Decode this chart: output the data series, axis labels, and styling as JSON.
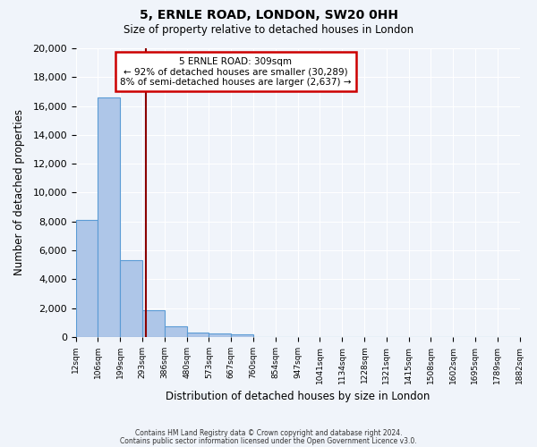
{
  "title": "5, ERNLE ROAD, LONDON, SW20 0HH",
  "subtitle": "Size of property relative to detached houses in London",
  "xlabel": "Distribution of detached houses by size in London",
  "ylabel": "Number of detached properties",
  "bar_values": [
    8100,
    16600,
    5300,
    1850,
    750,
    300,
    250,
    200,
    0,
    0,
    0,
    0,
    0,
    0,
    0,
    0,
    0,
    0,
    0,
    0
  ],
  "bin_labels": [
    "12sqm",
    "106sqm",
    "199sqm",
    "293sqm",
    "386sqm",
    "480sqm",
    "573sqm",
    "667sqm",
    "760sqm",
    "854sqm",
    "947sqm",
    "1041sqm",
    "1134sqm",
    "1228sqm",
    "1321sqm",
    "1415sqm",
    "1508sqm",
    "1602sqm",
    "1695sqm",
    "1789sqm",
    "1882sqm"
  ],
  "ylim": [
    0,
    20000
  ],
  "yticks": [
    0,
    2000,
    4000,
    6000,
    8000,
    10000,
    12000,
    14000,
    16000,
    18000,
    20000
  ],
  "bar_color": "#aec6e8",
  "bar_edge_color": "#5b9bd5",
  "vline_x": 3.17,
  "vline_color": "#8b0000",
  "annotation_title": "5 ERNLE ROAD: 309sqm",
  "annotation_line1": "← 92% of detached houses are smaller (30,289)",
  "annotation_line2": "8% of semi-detached houses are larger (2,637) →",
  "annotation_box_color": "#ffffff",
  "annotation_border_color": "#cc0000",
  "footer1": "Contains HM Land Registry data © Crown copyright and database right 2024.",
  "footer2": "Contains public sector information licensed under the Open Government Licence v3.0.",
  "background_color": "#f0f4fa"
}
